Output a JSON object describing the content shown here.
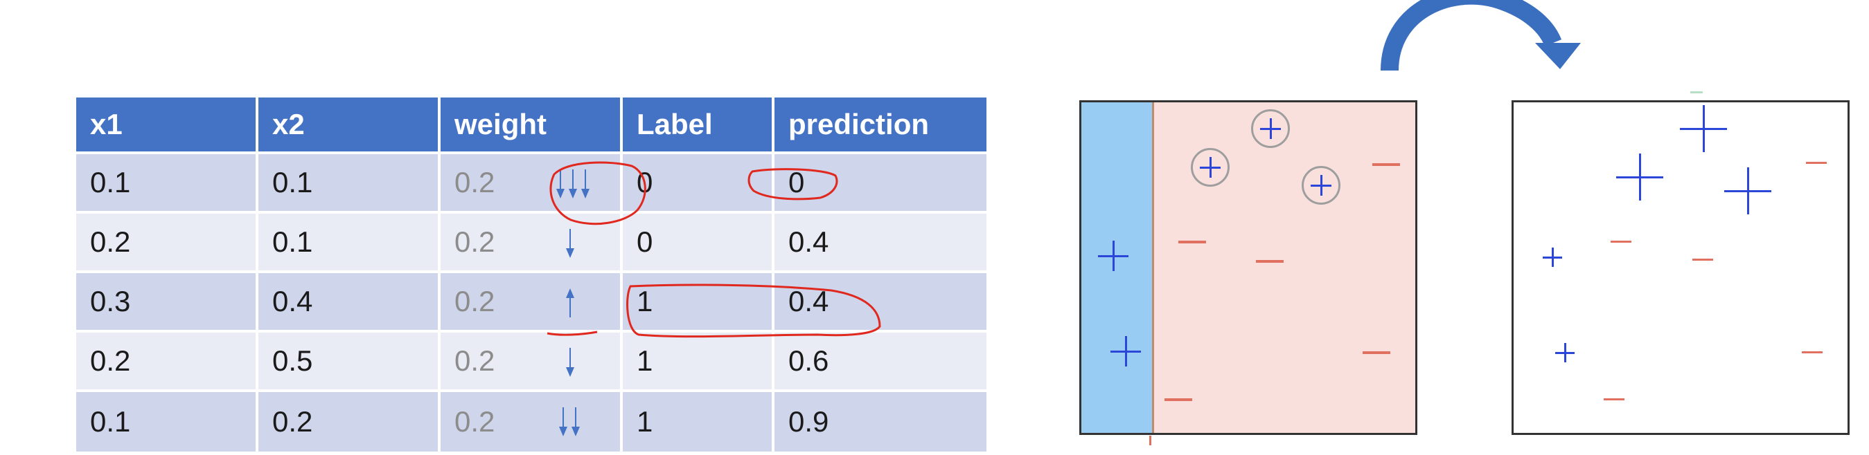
{
  "table": {
    "headers": [
      "x1",
      "x2",
      "weight",
      "Label",
      "prediction"
    ],
    "rows": [
      {
        "x1": "0.1",
        "x2": "0.1",
        "weight": "0.2",
        "label": "0",
        "prediction": "0",
        "weight_change": "decrease",
        "arrows": 3
      },
      {
        "x1": "0.2",
        "x2": "0.1",
        "weight": "0.2",
        "label": "0",
        "prediction": "0.4",
        "weight_change": "decrease",
        "arrows": 1
      },
      {
        "x1": "0.3",
        "x2": "0.4",
        "weight": "0.2",
        "label": "1",
        "prediction": "0.4",
        "weight_change": "increase",
        "arrows": 1
      },
      {
        "x1": "0.2",
        "x2": "0.5",
        "weight": "0.2",
        "label": "1",
        "prediction": "0.6",
        "weight_change": "decrease",
        "arrows": 1
      },
      {
        "x1": "0.1",
        "x2": "0.2",
        "weight": "0.2",
        "label": "1",
        "prediction": "0.9",
        "weight_change": "decrease",
        "arrows": 2
      }
    ]
  },
  "colors": {
    "header_bg": "#4472c4",
    "row_odd": "#cfd5ea",
    "row_even": "#e9ebf5",
    "plus": "#2b46d9",
    "minus": "#e07060",
    "annotation": "#e0281e",
    "left_region": "#99ccf2",
    "right_region": "#fae0dc",
    "curve_arrow": "#3a6fbf"
  },
  "icons": [
    "down-arrow-icon",
    "up-arrow-icon",
    "plus-marker-icon",
    "minus-marker-icon",
    "curved-arrow-icon"
  ]
}
